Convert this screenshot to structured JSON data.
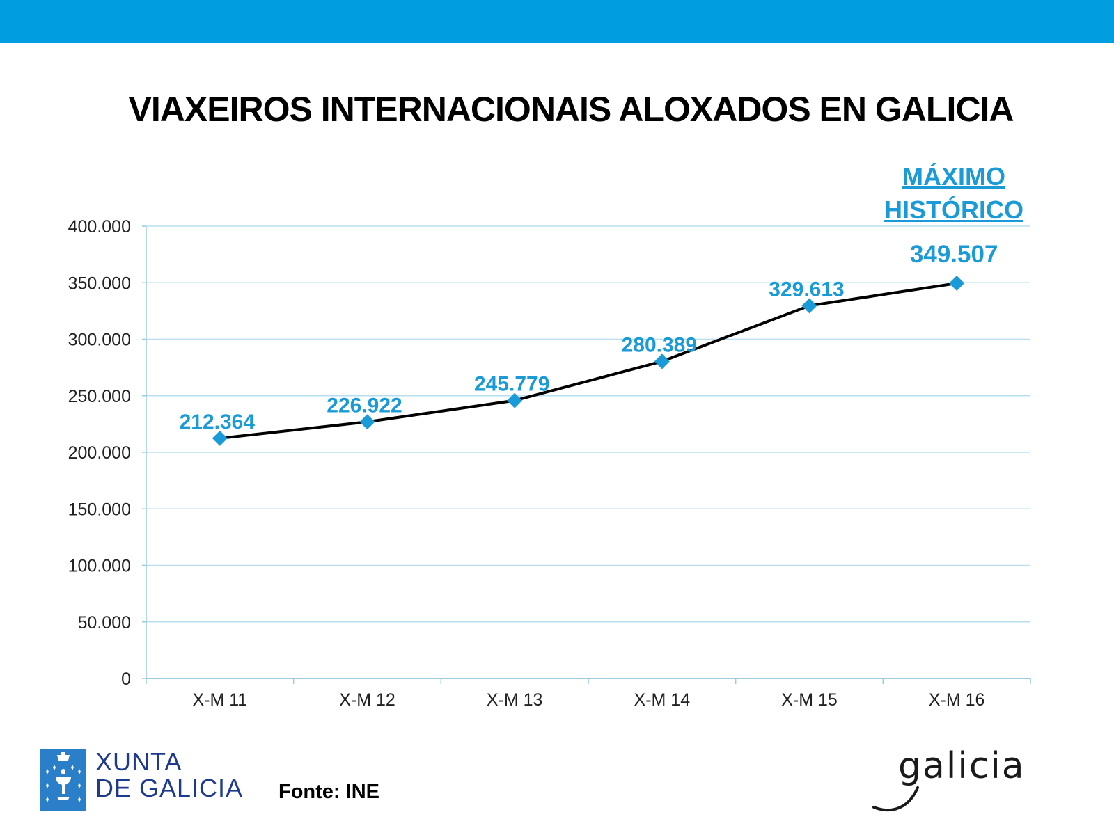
{
  "header": {
    "bar_color": "#009ee0"
  },
  "chart_data": {
    "type": "line",
    "title": "VIAXEIROS INTERNACIONAIS ALOXADOS EN GALICIA",
    "categories": [
      "X-M 11",
      "X-M 12",
      "X-M 13",
      "X-M 14",
      "X-M 15",
      "X-M 16"
    ],
    "values": [
      212364,
      226922,
      245779,
      280389,
      329613,
      349507
    ],
    "data_labels": [
      "212.364",
      "226.922",
      "245.779",
      "280.389",
      "329.613",
      "349.507"
    ],
    "y_ticks": [
      0,
      50000,
      100000,
      150000,
      200000,
      250000,
      300000,
      350000,
      400000
    ],
    "y_tick_labels": [
      "0",
      "50.000",
      "100.000",
      "150.000",
      "200.000",
      "250.000",
      "300.000",
      "350.000",
      "400.000"
    ],
    "ylim": [
      0,
      400000
    ],
    "grid": true,
    "line_color": "#000000",
    "marker_color": "#1a9bd7",
    "label_color": "#1a9bd7",
    "annotation": {
      "line1": "MÁXIMO",
      "line2": "HISTÓRICO"
    }
  },
  "footer": {
    "logo_left_line1": "XUNTA",
    "logo_left_line2": "DE GALICIA",
    "source": "Fonte: INE",
    "logo_right": "galicia"
  }
}
